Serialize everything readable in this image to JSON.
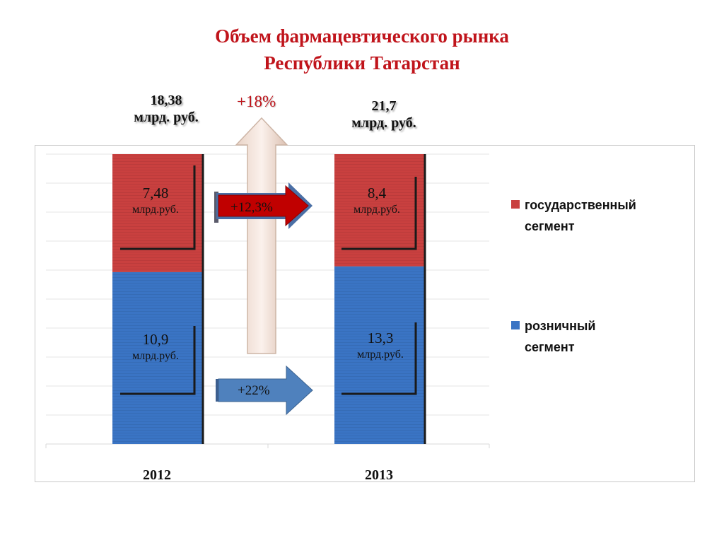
{
  "title": {
    "line1": "Объем фармацевтического рынка",
    "line2": "Республики Татарстан"
  },
  "totals": [
    {
      "value": "18,38",
      "unit": "млрд. руб."
    },
    {
      "value": "21,7",
      "unit": "млрд. руб."
    }
  ],
  "growth_total": "+18%",
  "growth_state": "+12,3%",
  "growth_retail": "+22%",
  "segment_labels": {
    "state_2012": {
      "value": "7,48",
      "unit": "млрд.руб."
    },
    "retail_2012": {
      "value": "10,9",
      "unit": "млрд.руб."
    },
    "state_2013": {
      "value": "8,4",
      "unit": "млрд.руб."
    },
    "retail_2013": {
      "value": "13,3",
      "unit": "млрд.руб."
    }
  },
  "legend": {
    "state_line1": "государственный",
    "state_line2": "сегмент",
    "retail_line1": "розничный",
    "retail_line2": "сегмент"
  },
  "colors": {
    "state": "#c9403f",
    "retail": "#3a74c4",
    "title": "#c0141b",
    "state_arrow": "#c00000",
    "retail_arrow": "#4f81bd"
  },
  "chart_data": {
    "type": "bar",
    "stacked": true,
    "categories": [
      "2012",
      "2013"
    ],
    "series": [
      {
        "name": "розничный сегмент",
        "values": [
          10.9,
          13.3
        ]
      },
      {
        "name": "государственный сегмент",
        "values": [
          7.48,
          8.4
        ]
      }
    ],
    "totals": [
      18.38,
      21.7
    ],
    "title": "Объем фармацевтического рынка Республики Татарстан",
    "legend_position": "right",
    "grid": true,
    "display": "100% stacked"
  }
}
